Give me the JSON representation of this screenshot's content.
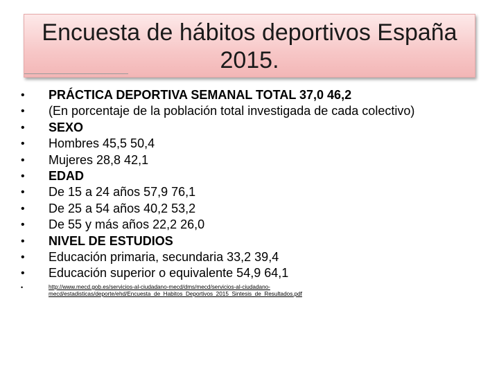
{
  "title": {
    "line1": "Encuesta de hábitos deportivos España",
    "line2": "2015."
  },
  "bullets": [
    {
      "text": "PRÁCTICA DEPORTIVA SEMANAL   TOTAL 37,0 46,2",
      "bold": true
    },
    {
      "text": "(En porcentaje de la población total investigada de cada colectivo)",
      "bold": false
    },
    {
      "text": "SEXO",
      "bold": true
    },
    {
      "text": "Hombres 45,5 50,4",
      "bold": false
    },
    {
      "text": "Mujeres 28,8 42,1",
      "bold": false
    },
    {
      "text": "EDAD",
      "bold": true
    },
    {
      "text": "De 15 a 24 años 57,9 76,1",
      "bold": false
    },
    {
      "text": "De 25 a 54 años 40,2 53,2",
      "bold": false
    },
    {
      "text": "De 55 y más años 22,2 26,0",
      "bold": false
    },
    {
      "text": "NIVEL DE ESTUDIOS",
      "bold": true
    },
    {
      "text": "Educación primaria, secundaria 33,2 39,4",
      "bold": false
    },
    {
      "text": "Educación superior o equivalente 54,9 64,1",
      "bold": false
    }
  ],
  "bullet_glyph": "•",
  "source_link": "http://www.mecd.gob.es/servicios-al-ciudadano-mecd/dms/mecd/servicios-al-ciudadano-mecd/estadisticas/deporte/ehd/Encuesta_de_Habitos_Deportivos_2015_Sintesis_de_Resultados.pdf"
}
